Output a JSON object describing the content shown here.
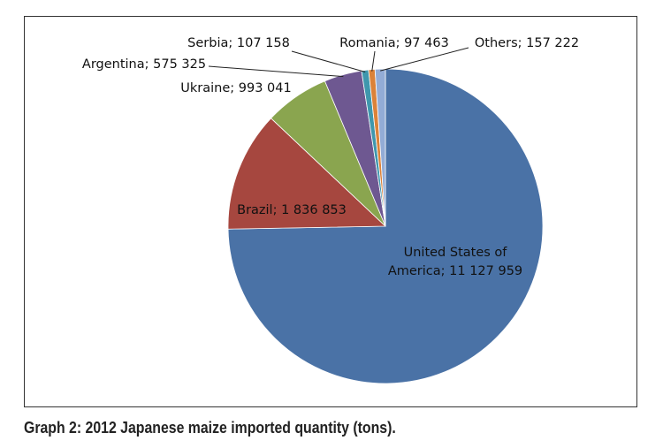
{
  "chart_data": {
    "type": "pie",
    "caption": "Graph 2: 2012 Japanese maize imported quantity (tons).",
    "categories": [
      "United States of America",
      "Brazil",
      "Ukraine",
      "Argentina",
      "Serbia",
      "Romania",
      "Others"
    ],
    "values": [
      11127959,
      1836853,
      993041,
      575325,
      107158,
      97463,
      157222
    ],
    "value_labels": [
      "11 127 959",
      "1 836 853",
      "993 041",
      "575 325",
      "107 158",
      "97 463",
      "157 222"
    ],
    "label_separator": "; ",
    "colors": [
      "#4a72a6",
      "#a6473f",
      "#8aa54f",
      "#6e5891",
      "#3f97ad",
      "#db8239",
      "#93acd6"
    ]
  }
}
